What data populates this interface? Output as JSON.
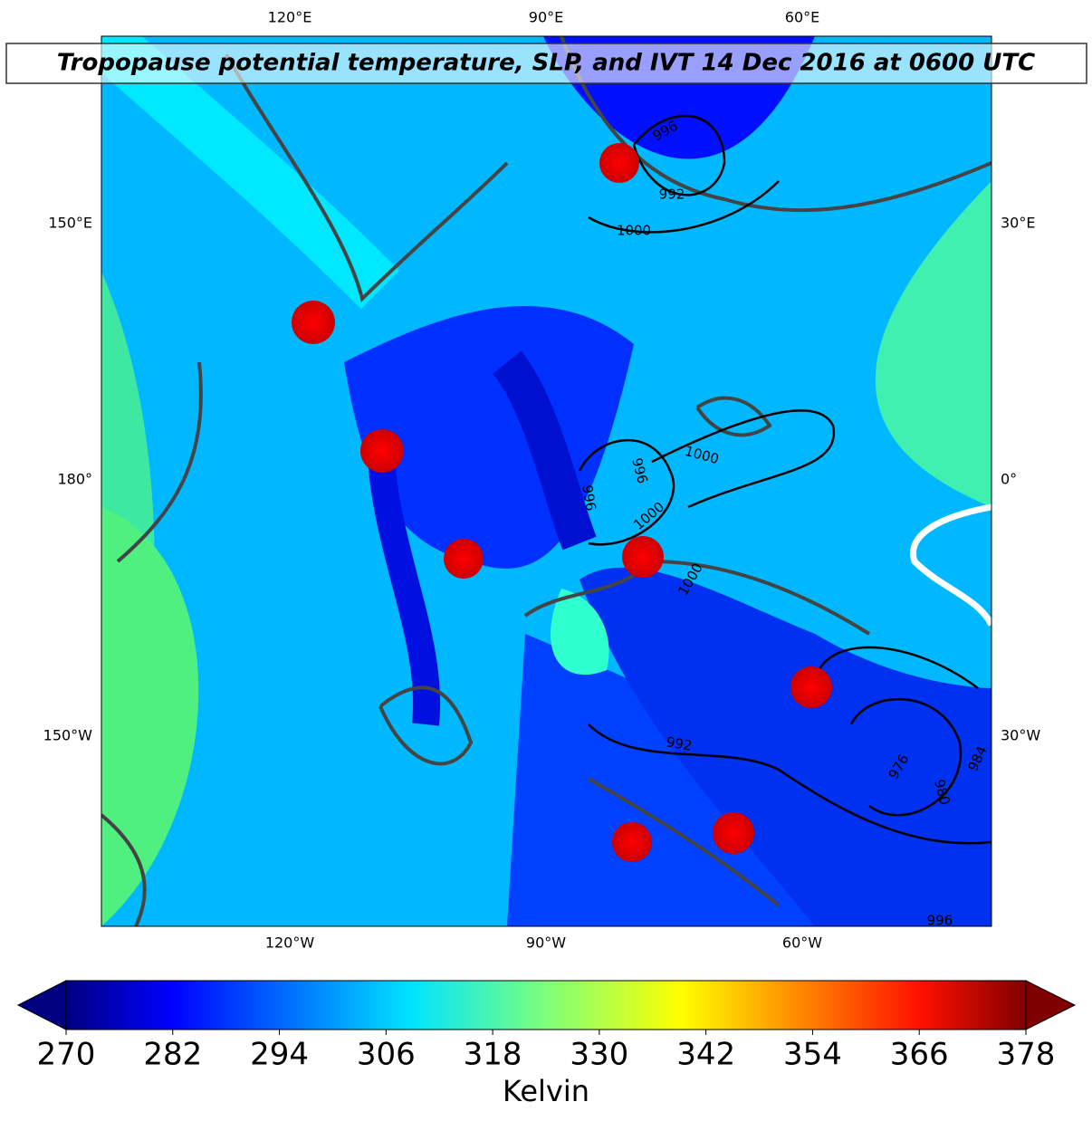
{
  "title": "Tropopause potential temperature, SLP, and IVT 14 Dec 2016 at 0600 UTC",
  "map": {
    "top_labels": [
      "120°E",
      "90°E",
      "60°E"
    ],
    "left_labels": [
      "150°E",
      "180°",
      "150°W"
    ],
    "right_labels": [
      "30°E",
      "0°",
      "30°W"
    ],
    "bottom_labels": [
      "120°W",
      "90°W",
      "60°W"
    ],
    "contour_labels": [
      996,
      992,
      1000,
      996,
      996,
      1000,
      1000,
      1000,
      992,
      976,
      980,
      984,
      996
    ]
  },
  "colorbar": {
    "range": [
      270,
      378
    ],
    "ticks": [
      270,
      282,
      294,
      306,
      318,
      330,
      342,
      354,
      366,
      378
    ],
    "label": "Kelvin"
  }
}
